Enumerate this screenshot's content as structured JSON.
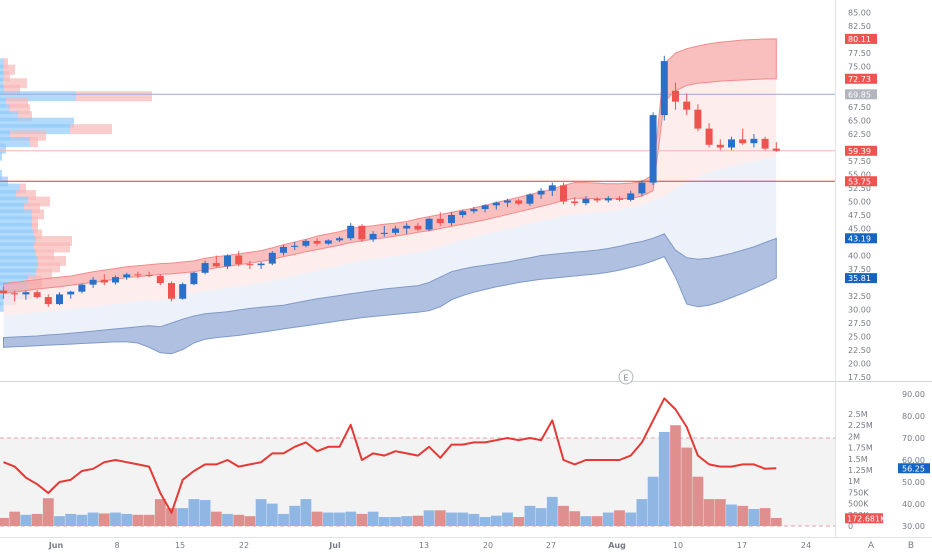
{
  "price_axis": {
    "ticks": [
      "85.00",
      "82.50",
      "77.50",
      "75.00",
      "67.50",
      "65.00",
      "62.50",
      "57.50",
      "55.00",
      "52.50",
      "50.00",
      "47.50",
      "45.00",
      "40.00",
      "37.50",
      "32.50",
      "30.00",
      "27.50",
      "25.00",
      "22.50",
      "20.00",
      "17.50"
    ],
    "tick_values": [
      85,
      82.5,
      77.5,
      75,
      67.5,
      65,
      62.5,
      57.5,
      55,
      52.5,
      50,
      47.5,
      45,
      40,
      37.5,
      32.5,
      30,
      27.5,
      25,
      22.5,
      20,
      17.5
    ],
    "badges": [
      {
        "text": "80.11",
        "value": 80.11,
        "color": "#ef5350"
      },
      {
        "text": "72.73",
        "value": 72.73,
        "color": "#ef5350"
      },
      {
        "text": "69.85",
        "value": 69.85,
        "color": "#b2b5be"
      },
      {
        "text": "59.39",
        "value": 59.39,
        "color": "#ef5350"
      },
      {
        "text": "53.75",
        "value": 53.75,
        "color": "#ef5350"
      },
      {
        "text": "43.19",
        "value": 43.19,
        "color": "#1565c0"
      },
      {
        "text": "35.81",
        "value": 35.81,
        "color": "#1565c0"
      }
    ]
  },
  "volume_axis": {
    "ticks": [
      "2.5M",
      "2.25M",
      "2M",
      "1.75M",
      "1.5M",
      "1.25M",
      "1M",
      "750K",
      "500K",
      "250K",
      "0"
    ],
    "tick_values": [
      2.5,
      2.25,
      2,
      1.75,
      1.5,
      1.25,
      1,
      0.75,
      0.5,
      0.25,
      0
    ],
    "badge": {
      "text": "172.681K",
      "value": 0.1727,
      "color": "#ef5350"
    }
  },
  "rsi_axis": {
    "ticks": [
      "90.00",
      "80.00",
      "70.00",
      "60.00",
      "50.00",
      "40.00",
      "30.00"
    ],
    "tick_values": [
      90,
      80,
      70,
      60,
      50,
      40,
      30
    ],
    "badge": {
      "text": "56.25",
      "value": 56.25,
      "color": "#1565c0"
    }
  },
  "time_axis": {
    "labels": [
      "Jun",
      "8",
      "15",
      "22",
      "Jul",
      "13",
      "20",
      "27",
      "Aug",
      "10",
      "17",
      "24"
    ],
    "bold": [
      true,
      false,
      false,
      false,
      true,
      false,
      false,
      false,
      true,
      false,
      false,
      false
    ]
  },
  "event_marker": "E",
  "corner_buttons": {
    "a": "A",
    "b": "B"
  },
  "colors": {
    "up": "#2a6fc9",
    "down": "#ef5350",
    "vol_up": "#90b7e3",
    "vol_down": "#e08f8f",
    "rsi": "#e53935"
  },
  "chart_data": {
    "type": "candlestick",
    "candles": [
      [
        33.5,
        34.2,
        32.0,
        33.0
      ],
      [
        33.0,
        33.5,
        31.5,
        32.8
      ],
      [
        32.8,
        33.5,
        31.8,
        33.2
      ],
      [
        33.2,
        33.6,
        32.0,
        32.3
      ],
      [
        32.3,
        32.8,
        30.5,
        31.0
      ],
      [
        31.0,
        33.2,
        30.8,
        32.8
      ],
      [
        32.8,
        33.5,
        32.0,
        33.3
      ],
      [
        33.3,
        34.8,
        33.0,
        34.6
      ],
      [
        34.6,
        36.0,
        34.0,
        35.5
      ],
      [
        35.5,
        36.5,
        34.5,
        35.0
      ],
      [
        35.0,
        36.3,
        34.6,
        36.0
      ],
      [
        36.0,
        36.8,
        35.5,
        36.5
      ],
      [
        36.5,
        37.0,
        35.8,
        36.4
      ],
      [
        36.4,
        37.0,
        36.0,
        36.2
      ],
      [
        36.2,
        36.5,
        34.5,
        34.9
      ],
      [
        34.9,
        35.2,
        31.5,
        32.0
      ],
      [
        32.0,
        35.0,
        31.8,
        34.7
      ],
      [
        34.7,
        37.0,
        34.5,
        36.8
      ],
      [
        36.8,
        39.0,
        36.5,
        38.6
      ],
      [
        38.6,
        40.0,
        37.8,
        38.0
      ],
      [
        38.0,
        40.2,
        37.5,
        40.0
      ],
      [
        40.0,
        40.8,
        38.0,
        38.4
      ],
      [
        38.4,
        39.0,
        37.5,
        38.2
      ],
      [
        38.2,
        38.8,
        37.5,
        38.5
      ],
      [
        38.5,
        40.8,
        38.2,
        40.5
      ],
      [
        40.5,
        42.0,
        40.0,
        41.6
      ],
      [
        41.6,
        42.5,
        41.0,
        41.8
      ],
      [
        41.8,
        43.0,
        41.5,
        42.7
      ],
      [
        42.7,
        43.2,
        41.8,
        42.2
      ],
      [
        42.2,
        43.0,
        42.0,
        42.8
      ],
      [
        42.8,
        43.5,
        42.5,
        43.2
      ],
      [
        43.2,
        46.0,
        42.8,
        45.5
      ],
      [
        45.5,
        45.8,
        42.5,
        43.0
      ],
      [
        43.0,
        44.5,
        42.5,
        44.0
      ],
      [
        44.0,
        45.5,
        43.5,
        44.2
      ],
      [
        44.2,
        45.5,
        43.8,
        45.0
      ],
      [
        45.0,
        46.0,
        44.0,
        45.5
      ],
      [
        45.5,
        46.0,
        44.5,
        44.8
      ],
      [
        44.8,
        47.0,
        44.5,
        46.8
      ],
      [
        46.8,
        48.0,
        45.5,
        46.0
      ],
      [
        46.0,
        48.0,
        45.5,
        47.5
      ],
      [
        47.5,
        48.5,
        47.0,
        48.2
      ],
      [
        48.2,
        49.0,
        47.8,
        48.6
      ],
      [
        48.6,
        49.5,
        48.0,
        49.3
      ],
      [
        49.3,
        50.0,
        48.5,
        49.8
      ],
      [
        49.8,
        50.5,
        49.0,
        50.2
      ],
      [
        50.2,
        50.5,
        49.3,
        49.6
      ],
      [
        49.6,
        51.5,
        49.2,
        51.3
      ],
      [
        51.3,
        52.5,
        50.5,
        52.0
      ],
      [
        52.0,
        53.5,
        51.0,
        53.0
      ],
      [
        53.0,
        53.5,
        49.5,
        50.0
      ],
      [
        50.0,
        50.8,
        49.2,
        49.7
      ],
      [
        49.7,
        51.0,
        49.3,
        50.5
      ],
      [
        50.5,
        50.8,
        49.8,
        50.2
      ],
      [
        50.2,
        51.0,
        49.8,
        50.6
      ],
      [
        50.6,
        51.0,
        50.0,
        50.3
      ],
      [
        50.3,
        52.0,
        50.0,
        51.5
      ],
      [
        51.5,
        54.0,
        51.0,
        53.5
      ],
      [
        53.5,
        66.5,
        53.0,
        66.0
      ],
      [
        66.0,
        77.0,
        65.0,
        76.0
      ],
      [
        70.5,
        72.0,
        67.0,
        68.5
      ],
      [
        68.5,
        70.0,
        66.0,
        67.0
      ],
      [
        67.0,
        68.0,
        63.0,
        63.5
      ],
      [
        63.5,
        64.5,
        60.0,
        60.5
      ],
      [
        60.5,
        61.5,
        59.5,
        60.0
      ],
      [
        60.0,
        62.0,
        59.5,
        61.5
      ],
      [
        61.5,
        63.5,
        60.5,
        60.8
      ],
      [
        60.8,
        62.5,
        60.0,
        61.6
      ],
      [
        61.6,
        62.0,
        59.5,
        59.8
      ],
      [
        59.8,
        61.0,
        59.2,
        59.4
      ]
    ],
    "volume": [
      0.18,
      0.32,
      0.25,
      0.27,
      0.62,
      0.22,
      0.27,
      0.25,
      0.3,
      0.28,
      0.3,
      0.27,
      0.25,
      0.25,
      0.6,
      0.4,
      0.4,
      0.6,
      0.58,
      0.32,
      0.27,
      0.25,
      0.22,
      0.6,
      0.5,
      0.27,
      0.45,
      0.6,
      0.32,
      0.3,
      0.3,
      0.32,
      0.27,
      0.32,
      0.2,
      0.2,
      0.22,
      0.23,
      0.35,
      0.35,
      0.3,
      0.3,
      0.27,
      0.2,
      0.23,
      0.3,
      0.2,
      0.45,
      0.4,
      0.65,
      0.45,
      0.33,
      0.22,
      0.22,
      0.3,
      0.35,
      0.3,
      0.6,
      1.1,
      2.1,
      2.25,
      1.75,
      1.1,
      0.6,
      0.6,
      0.48,
      0.45,
      0.38,
      0.4,
      0.18
    ],
    "rsi": [
      59,
      57,
      52,
      49,
      45,
      50,
      51,
      55,
      56,
      59,
      60,
      59,
      58,
      57,
      45,
      36,
      51,
      55,
      58,
      58,
      60,
      57,
      58,
      59,
      63,
      63,
      66,
      68,
      64,
      66,
      66,
      76,
      60,
      63,
      62,
      64,
      63,
      62,
      66,
      61,
      67,
      67,
      68,
      68,
      69,
      70,
      69,
      70,
      69,
      78,
      60,
      58,
      60,
      60,
      60,
      60,
      62,
      68,
      78,
      88,
      83,
      75,
      62,
      58,
      57,
      57,
      58,
      58,
      56,
      56.25
    ],
    "rsi_bands": [
      70,
      30
    ],
    "vp_levels": [
      {
        "price": 75.6,
        "up": 4,
        "down": 4
      },
      {
        "price": 74.4,
        "up": 3,
        "down": 12
      },
      {
        "price": 73.2,
        "up": 4,
        "down": 6
      },
      {
        "price": 71.9,
        "up": 3,
        "down": 24
      },
      {
        "price": 70.7,
        "up": 4,
        "down": 16
      },
      {
        "price": 69.5,
        "up": 76,
        "down": 76
      },
      {
        "price": 68.3,
        "up": 6,
        "down": 22
      },
      {
        "price": 67.1,
        "up": 10,
        "down": 20
      },
      {
        "price": 65.8,
        "up": 18,
        "down": 14
      },
      {
        "price": 64.6,
        "up": 74,
        "down": 0
      },
      {
        "price": 63.4,
        "up": 70,
        "down": 42
      },
      {
        "price": 62.2,
        "up": 10,
        "down": 36
      },
      {
        "price": 61.0,
        "up": 30,
        "down": 8
      },
      {
        "price": 59.8,
        "up": 6,
        "down": 0
      },
      {
        "price": 58.5,
        "up": 2,
        "down": 0
      },
      {
        "price": 54.9,
        "up": 2,
        "down": 0
      },
      {
        "price": 53.7,
        "up": 8,
        "down": 0
      },
      {
        "price": 52.4,
        "up": 20,
        "down": 6
      },
      {
        "price": 51.2,
        "up": 16,
        "down": 20
      },
      {
        "price": 50.0,
        "up": 28,
        "down": 22
      },
      {
        "price": 48.8,
        "up": 24,
        "down": 16
      },
      {
        "price": 47.6,
        "up": 32,
        "down": 12
      },
      {
        "price": 46.3,
        "up": 32,
        "down": 6
      },
      {
        "price": 45.1,
        "up": 32,
        "down": 6
      },
      {
        "price": 43.9,
        "up": 34,
        "down": 8
      },
      {
        "price": 42.7,
        "up": 36,
        "down": 36
      },
      {
        "price": 41.5,
        "up": 34,
        "down": 36
      },
      {
        "price": 40.2,
        "up": 36,
        "down": 18
      },
      {
        "price": 39.0,
        "up": 38,
        "down": 28
      },
      {
        "price": 37.8,
        "up": 38,
        "down": 22
      },
      {
        "price": 36.6,
        "up": 36,
        "down": 16
      },
      {
        "price": 35.4,
        "up": 28,
        "down": 14
      },
      {
        "price": 34.2,
        "up": 28,
        "down": 14
      },
      {
        "price": 32.9,
        "up": 22,
        "down": 10
      },
      {
        "price": 31.7,
        "up": 12,
        "down": 4
      },
      {
        "price": 30.5,
        "up": 4,
        "down": 0
      }
    ],
    "hlines": [
      {
        "value": 69.85,
        "color": "#9fa8da"
      },
      {
        "value": 59.39,
        "color": "#f5b5b5"
      },
      {
        "value": 53.75,
        "color": "#e53935"
      }
    ],
    "bands": {
      "upper_top": [
        34.8,
        35.0,
        35.3,
        35.5,
        35.8,
        36.0,
        36.2,
        36.6,
        37.0,
        37.3,
        37.6,
        37.9,
        38.1,
        38.3,
        38.5,
        38.6,
        38.8,
        39.0,
        39.5,
        39.8,
        40.0,
        40.3,
        40.6,
        40.9,
        41.4,
        42.0,
        42.5,
        43.0,
        43.6,
        44.0,
        44.4,
        45.0,
        45.3,
        45.5,
        45.8,
        46.0,
        46.3,
        46.8,
        47.2,
        47.6,
        48.0,
        48.4,
        48.8,
        49.3,
        49.8,
        50.3,
        50.8,
        51.3,
        51.8,
        52.3,
        53.0,
        53.5,
        53.5,
        53.4,
        53.3,
        53.3,
        53.4,
        53.7,
        55.0,
        75.5,
        77.5,
        78.3,
        78.8,
        79.2,
        79.5,
        79.7,
        79.9,
        80.0,
        80.1,
        80.11
      ],
      "upper_bot": [
        33.0,
        33.2,
        33.5,
        33.8,
        34.0,
        34.2,
        34.5,
        34.8,
        35.0,
        35.3,
        35.6,
        35.9,
        36.1,
        36.3,
        36.5,
        36.6,
        36.8,
        37.0,
        37.4,
        37.7,
        38.0,
        38.3,
        38.6,
        38.9,
        39.3,
        39.8,
        40.2,
        40.7,
        41.1,
        41.5,
        41.9,
        42.4,
        42.7,
        43.0,
        43.3,
        43.6,
        43.9,
        44.3,
        44.6,
        45.0,
        45.4,
        45.8,
        46.2,
        46.6,
        47.1,
        47.6,
        48.1,
        48.6,
        49.1,
        49.6,
        50.2,
        50.6,
        50.6,
        50.5,
        50.5,
        50.5,
        50.6,
        51.0,
        52.0,
        68.5,
        70.5,
        71.5,
        71.9,
        72.1,
        72.3,
        72.4,
        72.5,
        72.6,
        72.7,
        72.73
      ],
      "lower_top": [
        24.8,
        24.9,
        25.0,
        25.1,
        25.3,
        25.4,
        25.6,
        25.8,
        26.0,
        26.2,
        26.4,
        26.6,
        26.8,
        27.0,
        26.8,
        27.5,
        28.2,
        28.8,
        29.2,
        29.4,
        29.6,
        29.9,
        30.2,
        30.4,
        30.6,
        30.8,
        31.2,
        31.6,
        32.0,
        32.3,
        32.6,
        32.9,
        33.2,
        33.5,
        33.8,
        34.0,
        34.2,
        34.4,
        35.0,
        36.0,
        37.0,
        37.5,
        37.9,
        38.2,
        38.5,
        38.8,
        39.2,
        39.6,
        40.0,
        40.2,
        40.4,
        40.6,
        40.8,
        41.0,
        41.3,
        41.7,
        42.2,
        42.6,
        43.2,
        44.0,
        41.0,
        39.6,
        39.3,
        39.5,
        39.9,
        40.4,
        41.0,
        41.6,
        42.4,
        43.19
      ],
      "lower_bot": [
        23.0,
        23.1,
        23.2,
        23.3,
        23.4,
        23.5,
        23.6,
        23.7,
        23.8,
        23.9,
        24.0,
        24.0,
        23.8,
        23.0,
        22.0,
        21.8,
        22.6,
        23.8,
        24.5,
        24.8,
        25.0,
        25.2,
        25.5,
        25.8,
        26.1,
        26.4,
        26.7,
        27.0,
        27.3,
        27.6,
        27.9,
        28.2,
        28.5,
        28.7,
        28.9,
        29.1,
        29.3,
        29.5,
        29.8,
        30.5,
        31.8,
        32.6,
        33.2,
        33.7,
        34.2,
        34.6,
        35.0,
        35.3,
        35.6,
        35.8,
        36.0,
        36.2,
        36.4,
        36.6,
        36.9,
        37.3,
        37.8,
        38.3,
        39.0,
        39.8,
        36.0,
        31.0,
        30.5,
        30.8,
        31.4,
        32.2,
        33.0,
        33.9,
        34.8,
        35.81
      ],
      "mid": [
        29.0,
        29.1,
        29.3,
        29.5,
        29.7,
        29.9,
        30.1,
        30.3,
        30.5,
        30.8,
        31.0,
        31.3,
        31.5,
        31.7,
        31.6,
        32.0,
        32.5,
        33.0,
        33.4,
        33.7,
        34.0,
        34.3,
        34.6,
        34.9,
        35.3,
        35.8,
        36.3,
        36.8,
        37.3,
        37.7,
        38.1,
        38.6,
        39.0,
        39.3,
        39.6,
        39.9,
        40.2,
        40.6,
        41.0,
        41.6,
        42.3,
        42.9,
        43.4,
        43.9,
        44.4,
        44.9,
        45.4,
        45.9,
        46.4,
        46.8,
        47.3,
        47.6,
        47.8,
        48.0,
        48.2,
        48.5,
        48.9,
        49.4,
        50.2,
        51.0,
        52.3,
        53.5,
        54.6,
        55.4,
        56.0,
        56.5,
        57.0,
        57.4,
        57.8,
        58.2
      ]
    }
  }
}
